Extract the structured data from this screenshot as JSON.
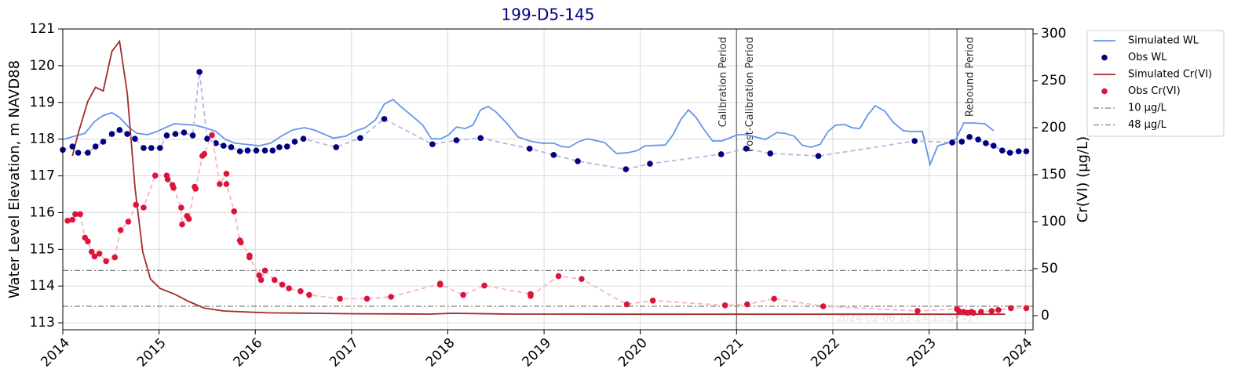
{
  "chart_data": {
    "type": "timeseries",
    "title": "199-D5-145",
    "ylabel": "Water Level Elevation, m NAVD88",
    "y2label": "Cr(VI) (µg/L)",
    "xlim": [
      2014,
      2024.08
    ],
    "xticks": [
      2014,
      2015,
      2016,
      2017,
      2018,
      2019,
      2020,
      2021,
      2022,
      2023,
      2024
    ],
    "ylim": [
      112.81,
      121
    ],
    "yticks": [
      113,
      114,
      115,
      116,
      117,
      118,
      119,
      120,
      121
    ],
    "y2lim": [
      -15,
      305
    ],
    "y2ticks": [
      0,
      50,
      100,
      150,
      200,
      250,
      300
    ],
    "grid": true,
    "legend": "outside-upper-right",
    "series": [
      {
        "name": "Simulated WL",
        "type": "line",
        "axis": "y",
        "color": "#6495ed",
        "x": [
          2014.0,
          2014.23,
          2014.33,
          2014.41,
          2014.51,
          2014.59,
          2014.69,
          2014.77,
          2014.88,
          2014.98,
          2015.08,
          2015.16,
          2015.37,
          2015.48,
          2015.59,
          2015.69,
          2015.79,
          2016.04,
          2016.16,
          2016.28,
          2016.39,
          2016.51,
          2016.61,
          2016.71,
          2016.81,
          2016.94,
          2017.03,
          2017.14,
          2017.25,
          2017.34,
          2017.43,
          2017.52,
          2017.63,
          2017.74,
          2017.83,
          2017.93,
          2018.01,
          2018.09,
          2018.18,
          2018.26,
          2018.34,
          2018.42,
          2018.5,
          2018.61,
          2018.73,
          2018.85,
          2018.98,
          2019.1,
          2019.18,
          2019.26,
          2019.36,
          2019.45,
          2019.63,
          2019.75,
          2019.87,
          2019.97,
          2020.05,
          2020.26,
          2020.34,
          2020.42,
          2020.5,
          2020.58,
          2020.66,
          2020.75,
          2020.85,
          2021.01,
          2021.11,
          2021.3,
          2021.42,
          2021.5,
          2021.6,
          2021.68,
          2021.77,
          2021.87,
          2021.95,
          2022.03,
          2022.12,
          2022.2,
          2022.28,
          2022.36,
          2022.44,
          2022.54,
          2022.62,
          2022.73,
          2022.81,
          2022.93,
          2023.01,
          2023.09,
          2023.19,
          2023.28,
          2023.36,
          2023.46,
          2023.58,
          2023.67
        ],
        "values": [
          117.99,
          118.16,
          118.48,
          118.63,
          118.72,
          118.59,
          118.31,
          118.16,
          118.12,
          118.21,
          118.33,
          118.42,
          118.38,
          118.31,
          118.21,
          117.99,
          117.89,
          117.82,
          117.89,
          118.1,
          118.25,
          118.31,
          118.25,
          118.14,
          118.03,
          118.08,
          118.21,
          118.31,
          118.53,
          118.95,
          119.08,
          118.87,
          118.63,
          118.38,
          118.01,
          118.01,
          118.12,
          118.33,
          118.29,
          118.38,
          118.8,
          118.89,
          118.74,
          118.44,
          118.06,
          117.95,
          117.89,
          117.89,
          117.8,
          117.78,
          117.93,
          118.01,
          117.91,
          117.61,
          117.63,
          117.69,
          117.82,
          117.84,
          118.12,
          118.53,
          118.8,
          118.59,
          118.27,
          117.95,
          117.95,
          118.12,
          118.12,
          117.99,
          118.18,
          118.16,
          118.08,
          117.84,
          117.78,
          117.86,
          118.21,
          118.38,
          118.4,
          118.31,
          118.29,
          118.65,
          118.91,
          118.76,
          118.48,
          118.23,
          118.21,
          118.21,
          117.31,
          117.82,
          117.89,
          118.01,
          118.44,
          118.44,
          118.42,
          118.23
        ]
      },
      {
        "name": "Obs WL",
        "type": "scatter",
        "axis": "y",
        "color": "#000080",
        "line_color": "#b8b8e0",
        "x": [
          2014.0,
          2014.1,
          2014.16,
          2014.26,
          2014.34,
          2014.42,
          2014.51,
          2014.59,
          2014.67,
          2014.75,
          2014.84,
          2014.92,
          2015.01,
          2015.08,
          2015.17,
          2015.26,
          2015.35,
          2015.42,
          2015.5,
          2015.59,
          2015.67,
          2015.75,
          2015.84,
          2015.92,
          2016.01,
          2016.1,
          2016.18,
          2016.25,
          2016.33,
          2016.41,
          2016.5,
          2016.84,
          2017.09,
          2017.34,
          2017.84,
          2018.09,
          2018.34,
          2018.85,
          2019.1,
          2019.35,
          2019.85,
          2020.1,
          2020.84,
          2021.1,
          2021.35,
          2021.85,
          2022.85,
          2023.24,
          2023.34,
          2023.42,
          2023.51,
          2023.59,
          2023.67,
          2023.76,
          2023.84,
          2023.93,
          2024.01
        ],
        "values": [
          117.71,
          117.8,
          117.63,
          117.63,
          117.8,
          117.93,
          118.14,
          118.25,
          118.14,
          118.01,
          117.76,
          117.76,
          117.76,
          118.1,
          118.14,
          118.18,
          118.1,
          119.83,
          118.01,
          117.89,
          117.82,
          117.78,
          117.67,
          117.69,
          117.69,
          117.69,
          117.69,
          117.78,
          117.8,
          117.93,
          118.01,
          117.78,
          118.03,
          118.55,
          117.86,
          117.97,
          118.03,
          117.74,
          117.57,
          117.4,
          117.18,
          117.33,
          117.59,
          117.74,
          117.61,
          117.54,
          117.95,
          117.91,
          117.93,
          118.06,
          117.99,
          117.89,
          117.82,
          117.69,
          117.63,
          117.67,
          117.67
        ]
      },
      {
        "name": "Simulated Cr(VI)",
        "type": "line",
        "axis": "y2",
        "color": "#a52a2a",
        "x": [
          2014.1,
          2014.16,
          2014.26,
          2014.34,
          2014.42,
          2014.51,
          2014.59,
          2014.67,
          2014.75,
          2014.83,
          2014.91,
          2015.01,
          2015.16,
          2015.31,
          2015.47,
          2015.67,
          2015.88,
          2016.12,
          2016.61,
          2017.02,
          2017.83,
          2018.04,
          2018.65,
          2019.87,
          2021.5,
          2023.14,
          2023.79
        ],
        "values": [
          170,
          194,
          228,
          243,
          239,
          281,
          292,
          236,
          136,
          68,
          39,
          29,
          23,
          15,
          8,
          5,
          4,
          3,
          2.5,
          2,
          1.7,
          2.5,
          1.7,
          1.5,
          1.5,
          1.5,
          1.5
        ]
      },
      {
        "name": "Obs Cr(VI)",
        "type": "scatter",
        "axis": "y2",
        "color": "#dc143c",
        "line_color": "#f4b6c6",
        "x": [
          2014.05,
          2014.1,
          2014.13,
          2014.18,
          2014.23,
          2014.26,
          2014.3,
          2014.33,
          2014.38,
          2014.45,
          2014.54,
          2014.6,
          2014.68,
          2014.76,
          2014.84,
          2014.96,
          2015.08,
          2015.09,
          2015.14,
          2015.15,
          2015.23,
          2015.24,
          2015.29,
          2015.31,
          2015.37,
          2015.38,
          2015.45,
          2015.47,
          2015.55,
          2015.63,
          2015.7,
          2015.7,
          2015.78,
          2015.84,
          2015.85,
          2015.94,
          2015.94,
          2016.04,
          2016.06,
          2016.1,
          2016.2,
          2016.28,
          2016.35,
          2016.47,
          2016.56,
          2016.88,
          2017.16,
          2017.41,
          2017.92,
          2017.92,
          2018.16,
          2018.38,
          2018.86,
          2018.86,
          2019.15,
          2019.39,
          2019.86,
          2020.13,
          2020.88,
          2021.11,
          2021.39,
          2021.9,
          2022.88,
          2023.29,
          2023.31,
          2023.36,
          2023.4,
          2023.44,
          2023.46,
          2023.54,
          2023.65,
          2023.72,
          2023.85,
          2024.01
        ],
        "values": [
          101,
          102,
          108,
          108,
          83,
          79,
          68,
          63,
          66,
          58,
          62,
          91,
          100,
          118,
          115,
          149,
          149,
          145,
          139,
          136,
          115,
          97,
          106,
          103,
          137,
          135,
          170,
          172,
          192,
          140,
          151,
          140,
          111,
          80,
          78,
          64,
          62,
          43,
          38,
          48,
          38,
          33,
          29,
          26,
          22,
          18,
          18,
          20,
          34,
          33,
          22,
          32,
          23,
          21,
          42,
          39,
          12,
          16,
          11,
          12,
          18,
          10,
          5,
          7,
          5,
          4,
          3,
          4,
          3,
          4,
          5,
          6,
          8,
          8
        ]
      }
    ],
    "hlines": [
      {
        "name": "10 µg/L",
        "value": 10,
        "color": "#808080"
      },
      {
        "name": "48 µg/L",
        "value": 48,
        "color": "#808080"
      }
    ],
    "vlines": [
      2021.0,
      2023.29
    ],
    "periods": [
      {
        "label": "Calibration Period",
        "end": 2021.0
      },
      {
        "label": "Post-Calibration Period",
        "start": 2021.0
      },
      {
        "label": "Rebound Period",
        "start": 2023.29
      }
    ],
    "watermark": "2024-02-06 13:14:15.57417"
  }
}
